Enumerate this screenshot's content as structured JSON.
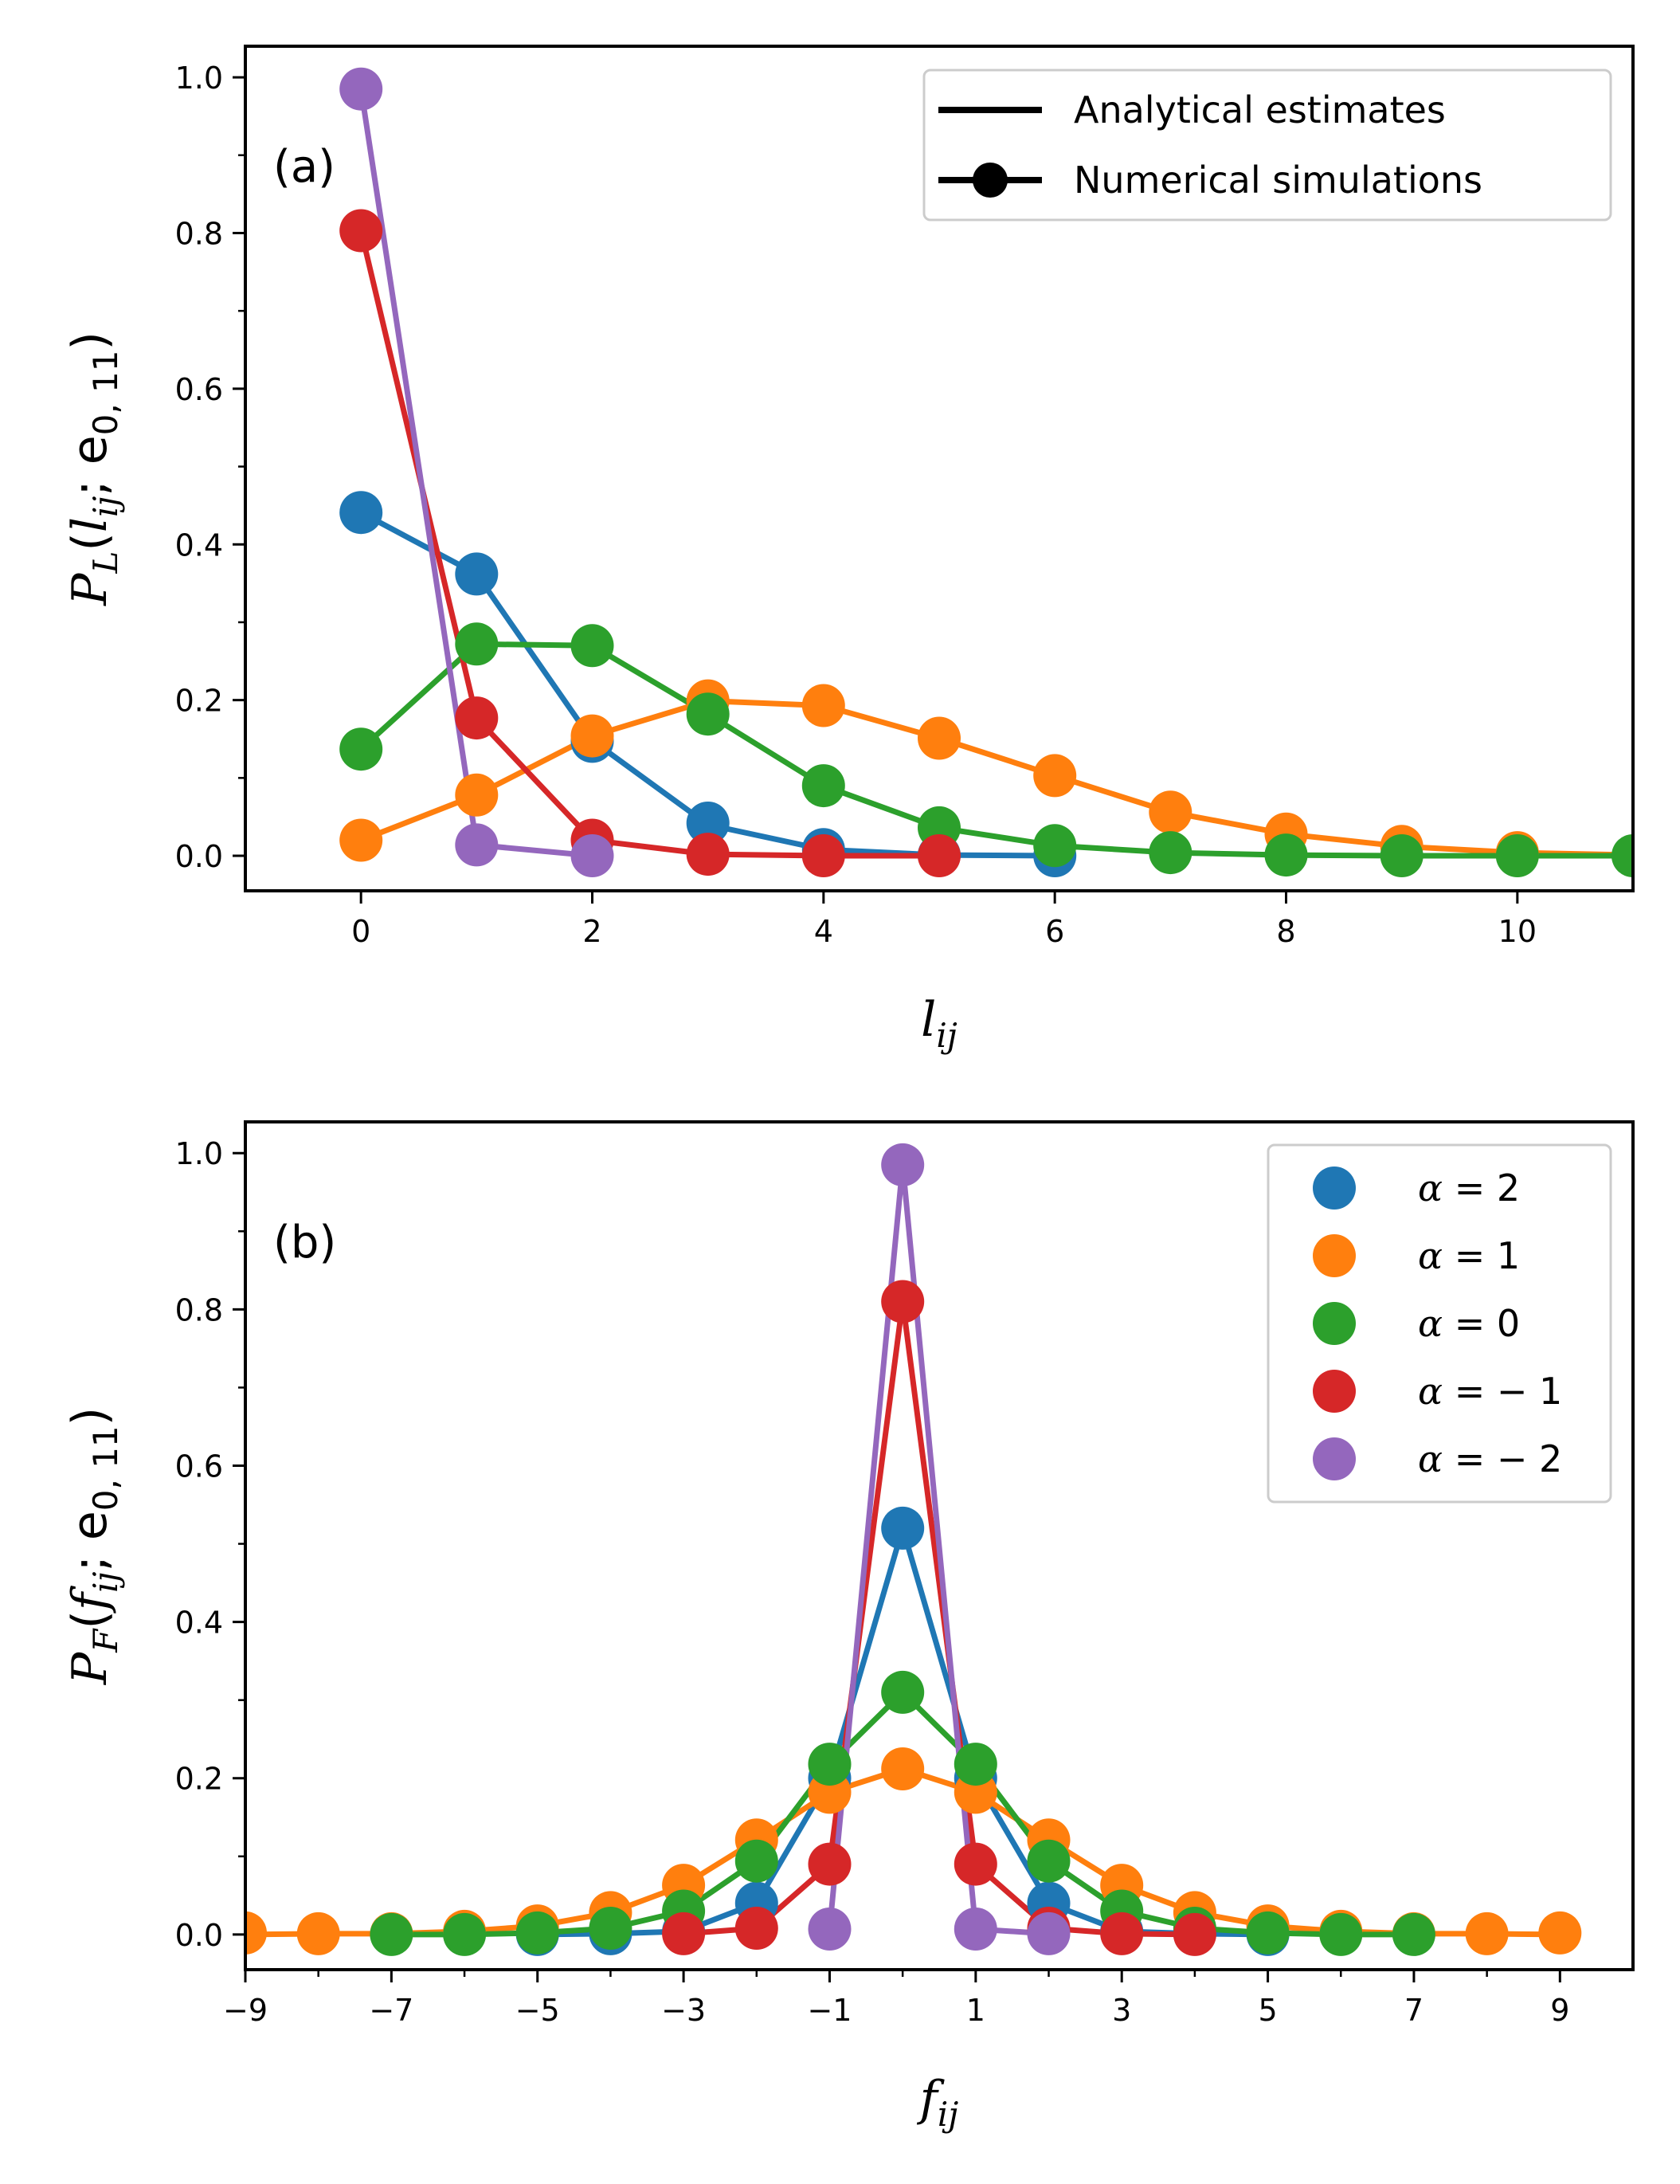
{
  "chart_data": [
    {
      "type": "line",
      "panel_label": "(a)",
      "xlabel": "l",
      "xlabel_sub": "ij",
      "ylabel": "P",
      "ylabel_sub": "L",
      "ylabel_args_open": "(",
      "ylabel_var": "l",
      "ylabel_var_sub": "ij",
      "ylabel_sep": "; e",
      "ylabel_e_sub": "0, 11",
      "ylabel_close": ")",
      "xlim": [
        -1,
        11
      ],
      "ylim": [
        -0.045,
        1.04
      ],
      "xticks": [
        0,
        2,
        4,
        6,
        8,
        10
      ],
      "xtick_labels": [
        "0",
        "2",
        "4",
        "6",
        "8",
        "10"
      ],
      "yticks": [
        0.0,
        0.2,
        0.4,
        0.6,
        0.8,
        1.0
      ],
      "ytick_labels": [
        "0.0",
        "0.2",
        "0.4",
        "0.6",
        "0.8",
        "1.0"
      ],
      "legend": {
        "position": "upper right",
        "entries": [
          {
            "label": "Analytical estimates",
            "style": "line"
          },
          {
            "label": "Numerical simulations",
            "style": "line-marker"
          }
        ]
      },
      "series": [
        {
          "name": "α = 2",
          "color": "#1f77b4",
          "x": [
            0,
            1,
            2,
            3,
            4,
            5,
            6
          ],
          "values": [
            0.441,
            0.362,
            0.147,
            0.042,
            0.008,
            0.001,
            0.0
          ],
          "line_x": [
            0,
            1,
            2,
            3,
            4,
            5,
            6
          ],
          "line_values": [
            0.441,
            0.362,
            0.148,
            0.04,
            0.008,
            0.001,
            0.0
          ]
        },
        {
          "name": "α = 1",
          "color": "#ff7f0e",
          "x": [
            0,
            1,
            2,
            3,
            4,
            5,
            6,
            7,
            8,
            9,
            10
          ],
          "values": [
            0.02,
            0.078,
            0.154,
            0.199,
            0.193,
            0.151,
            0.103,
            0.056,
            0.028,
            0.012,
            0.004
          ],
          "line_x": [
            0,
            1,
            2,
            3,
            4,
            5,
            6,
            7,
            8,
            9,
            10,
            11
          ],
          "line_values": [
            0.02,
            0.078,
            0.154,
            0.199,
            0.193,
            0.151,
            0.103,
            0.056,
            0.028,
            0.012,
            0.004,
            0.001
          ]
        },
        {
          "name": "α = 0",
          "color": "#2ca02c",
          "x": [
            0,
            1,
            2,
            3,
            4,
            5,
            6,
            7,
            8,
            9,
            10,
            11
          ],
          "values": [
            0.137,
            0.272,
            0.27,
            0.182,
            0.09,
            0.036,
            0.013,
            0.004,
            0.001,
            0.0,
            0.0,
            0.0
          ],
          "line_x": [
            0,
            1,
            2,
            3,
            4,
            5,
            6,
            7,
            8,
            9,
            10,
            11
          ],
          "line_values": [
            0.137,
            0.272,
            0.27,
            0.182,
            0.09,
            0.036,
            0.013,
            0.004,
            0.001,
            0.0,
            0.0,
            0.0
          ]
        },
        {
          "name": "α = −1",
          "color": "#d62728",
          "x": [
            0,
            1,
            2,
            3,
            4,
            5
          ],
          "values": [
            0.803,
            0.177,
            0.02,
            0.002,
            0.0,
            0.0
          ],
          "line_x": [
            0,
            1,
            2,
            3,
            4,
            5
          ],
          "line_values": [
            0.803,
            0.177,
            0.02,
            0.002,
            0.0,
            0.0
          ]
        },
        {
          "name": "α = −2",
          "color": "#9467bd",
          "x": [
            0,
            1,
            2
          ],
          "values": [
            0.985,
            0.014,
            0.0
          ],
          "line_x": [
            0,
            1,
            2
          ],
          "line_values": [
            0.985,
            0.014,
            0.0
          ]
        }
      ]
    },
    {
      "type": "line",
      "panel_label": "(b)",
      "xlabel": "f",
      "xlabel_sub": "ij",
      "ylabel": "P",
      "ylabel_sub": "F",
      "ylabel_args_open": "(",
      "ylabel_var": "f",
      "ylabel_var_sub": "ij",
      "ylabel_sep": "; e",
      "ylabel_e_sub": "0, 11",
      "ylabel_close": ")",
      "xlim": [
        -9,
        10
      ],
      "ylim": [
        -0.045,
        1.04
      ],
      "xticks": [
        -9,
        -7,
        -5,
        -3,
        -1,
        1,
        3,
        5,
        7,
        9
      ],
      "xtick_labels": [
        "−9",
        "−7",
        "−5",
        "−3",
        "−1",
        "1",
        "3",
        "5",
        "7",
        "9"
      ],
      "xticks_minor": [
        -8,
        -6,
        -4,
        -2,
        0,
        2,
        4,
        6,
        8
      ],
      "yticks": [
        0.0,
        0.2,
        0.4,
        0.6,
        0.8,
        1.0
      ],
      "ytick_labels": [
        "0.0",
        "0.2",
        "0.4",
        "0.6",
        "0.8",
        "1.0"
      ],
      "legend": {
        "position": "upper right",
        "entries": [
          {
            "label_var": "α",
            "label_rest": " = 2",
            "color": "#1f77b4"
          },
          {
            "label_var": "α",
            "label_rest": " = 1",
            "color": "#ff7f0e"
          },
          {
            "label_var": "α",
            "label_rest": " = 0",
            "color": "#2ca02c"
          },
          {
            "label_var": "α",
            "label_rest": " = − 1",
            "color": "#d62728"
          },
          {
            "label_var": "α",
            "label_rest": " = − 2",
            "color": "#9467bd"
          }
        ]
      },
      "series": [
        {
          "name": "α = 2",
          "color": "#1f77b4",
          "x": [
            -5,
            -4,
            -3,
            -2,
            -1,
            0,
            1,
            2,
            3,
            4,
            5
          ],
          "values": [
            0.0,
            0.001,
            0.004,
            0.04,
            0.2,
            0.52,
            0.2,
            0.04,
            0.004,
            0.001,
            0.0
          ],
          "line_x": [
            -5,
            -4,
            -3,
            -2,
            -1,
            0,
            1,
            2,
            3,
            4,
            5
          ],
          "line_values": [
            0.0,
            0.001,
            0.004,
            0.04,
            0.2,
            0.52,
            0.2,
            0.04,
            0.004,
            0.001,
            0.0
          ]
        },
        {
          "name": "α = 1",
          "color": "#ff7f0e",
          "x": [
            -9,
            -8,
            -7,
            -6,
            -5,
            -4,
            -3,
            -2,
            -1,
            0,
            1,
            2,
            3,
            4,
            5,
            6,
            7,
            8,
            9
          ],
          "values": [
            0.002,
            0.001,
            0.001,
            0.004,
            0.011,
            0.028,
            0.063,
            0.121,
            0.182,
            0.212,
            0.182,
            0.121,
            0.063,
            0.028,
            0.011,
            0.004,
            0.001,
            0.001,
            0.002
          ],
          "line_x": [
            -9,
            -8,
            -7,
            -6,
            -5,
            -4,
            -3,
            -2,
            -1,
            0,
            1,
            2,
            3,
            4,
            5,
            6,
            7,
            8,
            9
          ],
          "line_values": [
            0.0,
            0.001,
            0.001,
            0.004,
            0.011,
            0.028,
            0.063,
            0.121,
            0.182,
            0.212,
            0.182,
            0.121,
            0.063,
            0.028,
            0.011,
            0.004,
            0.001,
            0.001,
            0.0
          ]
        },
        {
          "name": "α = 0",
          "color": "#2ca02c",
          "x": [
            -7,
            -6,
            -5,
            -4,
            -3,
            -2,
            -1,
            0,
            1,
            2,
            3,
            4,
            5,
            6,
            7
          ],
          "values": [
            0.0,
            0.0,
            0.002,
            0.008,
            0.03,
            0.094,
            0.218,
            0.31,
            0.218,
            0.094,
            0.03,
            0.008,
            0.002,
            0.0,
            0.0
          ],
          "line_x": [
            -7,
            -6,
            -5,
            -4,
            -3,
            -2,
            -1,
            0,
            1,
            2,
            3,
            4,
            5,
            6,
            7
          ],
          "line_values": [
            0.0,
            0.0,
            0.002,
            0.008,
            0.03,
            0.094,
            0.218,
            0.31,
            0.218,
            0.094,
            0.03,
            0.008,
            0.002,
            0.0,
            0.0
          ]
        },
        {
          "name": "α = −1",
          "color": "#d62728",
          "x": [
            -3,
            -2,
            -1,
            0,
            1,
            2,
            3,
            4
          ],
          "values": [
            0.001,
            0.008,
            0.09,
            0.81,
            0.09,
            0.008,
            0.001,
            0.0
          ],
          "line_x": [
            -3,
            -2,
            -1,
            0,
            1,
            2,
            3,
            4
          ],
          "line_values": [
            0.001,
            0.008,
            0.09,
            0.81,
            0.09,
            0.008,
            0.001,
            0.0
          ]
        },
        {
          "name": "α = −2",
          "color": "#9467bd",
          "x": [
            -1,
            0,
            1,
            2
          ],
          "values": [
            0.007,
            0.985,
            0.007,
            0.001
          ],
          "line_x": [
            -1,
            0,
            1,
            2
          ],
          "line_values": [
            0.007,
            0.985,
            0.007,
            0.001
          ]
        }
      ]
    }
  ]
}
